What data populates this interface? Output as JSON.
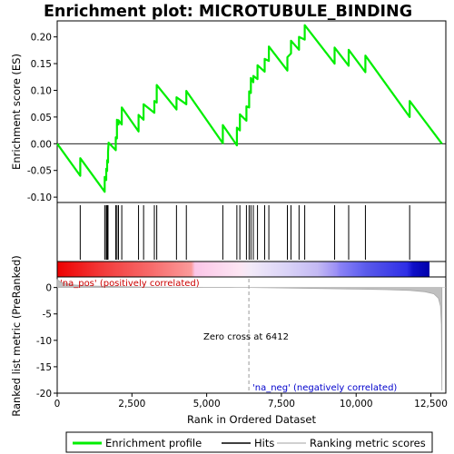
{
  "colors": {
    "enrichment": "#00ee00",
    "hits": "#000000",
    "ranking": "#c0c0c0",
    "pos_label": "#cc0000",
    "neg_label": "#0000cc",
    "zero_cross_line": "#9a9a9a"
  },
  "chart_data": {
    "type": "line",
    "title": "Enrichment plot: MICROTUBULE_BINDING",
    "xlabel": "Rank in Ordered Dataset",
    "ylabel_top": "Enrichment score (ES)",
    "ylabel_bottom": "Ranked list metric (PreRanked)",
    "xlim": [
      0,
      13000
    ],
    "ylim_top": [
      -0.11,
      0.23
    ],
    "ylim_bottom": [
      -20,
      2
    ],
    "x_ticks": [
      0,
      2500,
      5000,
      7500,
      10000,
      12500
    ],
    "x_tick_labels": [
      "0",
      "2,500",
      "5,000",
      "7,500",
      "10,000",
      "12,500"
    ],
    "y_ticks_top": [
      -0.1,
      -0.05,
      0.0,
      0.05,
      0.1,
      0.15,
      0.2
    ],
    "y_tick_labels_top": [
      "-0.10",
      "-0.05",
      "0.00",
      "0.05",
      "0.10",
      "0.15",
      "0.20"
    ],
    "y_ticks_bottom": [
      0,
      -5,
      -10,
      -15,
      -20
    ],
    "y_tick_labels_bottom": [
      "0",
      "-5",
      "-10",
      "-15",
      "-20"
    ],
    "hits": [
      770,
      1590,
      1640,
      1670,
      1700,
      1960,
      2000,
      2050,
      2160,
      2720,
      2890,
      3250,
      3330,
      3990,
      4320,
      5540,
      6010,
      6110,
      6330,
      6420,
      6480,
      6560,
      6700,
      6940,
      7080,
      7700,
      7820,
      8090,
      8280,
      9280,
      9750,
      10310,
      11790
    ],
    "es_points": [
      [
        0,
        0.0
      ],
      [
        770,
        -0.06
      ],
      [
        770,
        -0.027
      ],
      [
        1590,
        -0.09
      ],
      [
        1590,
        -0.062
      ],
      [
        1640,
        -0.068
      ],
      [
        1640,
        -0.047
      ],
      [
        1670,
        -0.051
      ],
      [
        1670,
        -0.031
      ],
      [
        1700,
        -0.035
      ],
      [
        1700,
        -0.015
      ],
      [
        1720,
        0.002
      ],
      [
        1960,
        -0.012
      ],
      [
        1960,
        0.012
      ],
      [
        2000,
        0.01
      ],
      [
        2000,
        0.045
      ],
      [
        2050,
        0.036
      ],
      [
        2050,
        0.044
      ],
      [
        2160,
        0.036
      ],
      [
        2160,
        0.068
      ],
      [
        2720,
        0.023
      ],
      [
        2720,
        0.054
      ],
      [
        2890,
        0.045
      ],
      [
        2890,
        0.074
      ],
      [
        3250,
        0.058
      ],
      [
        3250,
        0.08
      ],
      [
        3330,
        0.077
      ],
      [
        3330,
        0.11
      ],
      [
        3990,
        0.064
      ],
      [
        3990,
        0.087
      ],
      [
        4320,
        0.074
      ],
      [
        4320,
        0.099
      ],
      [
        5540,
        0.001
      ],
      [
        5540,
        0.035
      ],
      [
        6010,
        -0.003
      ],
      [
        6010,
        0.03
      ],
      [
        6110,
        0.025
      ],
      [
        6110,
        0.055
      ],
      [
        6330,
        0.043
      ],
      [
        6330,
        0.07
      ],
      [
        6420,
        0.068
      ],
      [
        6420,
        0.098
      ],
      [
        6480,
        0.095
      ],
      [
        6480,
        0.123
      ],
      [
        6560,
        0.115
      ],
      [
        6560,
        0.127
      ],
      [
        6700,
        0.121
      ],
      [
        6700,
        0.147
      ],
      [
        6940,
        0.135
      ],
      [
        6940,
        0.159
      ],
      [
        7080,
        0.155
      ],
      [
        7080,
        0.182
      ],
      [
        7700,
        0.137
      ],
      [
        7700,
        0.162
      ],
      [
        7820,
        0.169
      ],
      [
        7820,
        0.193
      ],
      [
        8090,
        0.176
      ],
      [
        8090,
        0.2
      ],
      [
        8280,
        0.195
      ],
      [
        8280,
        0.222
      ],
      [
        9280,
        0.15
      ],
      [
        9280,
        0.18
      ],
      [
        9750,
        0.146
      ],
      [
        9750,
        0.176
      ],
      [
        10310,
        0.134
      ],
      [
        10310,
        0.165
      ],
      [
        11790,
        0.05
      ],
      [
        11790,
        0.08
      ],
      [
        12870,
        0.0
      ]
    ],
    "metric_points": [
      [
        0,
        1.5
      ],
      [
        150,
        0.9
      ],
      [
        500,
        0.5
      ],
      [
        1000,
        0.3
      ],
      [
        2000,
        0.18
      ],
      [
        3000,
        0.1
      ],
      [
        4000,
        0.05
      ],
      [
        5000,
        0.02
      ],
      [
        6000,
        0.005
      ],
      [
        6412,
        0.0
      ],
      [
        7000,
        -0.05
      ],
      [
        8000,
        -0.12
      ],
      [
        9000,
        -0.2
      ],
      [
        10000,
        -0.3
      ],
      [
        11000,
        -0.4
      ],
      [
        11800,
        -0.55
      ],
      [
        12300,
        -0.8
      ],
      [
        12600,
        -1.2
      ],
      [
        12750,
        -2.0
      ],
      [
        12820,
        -3.5
      ],
      [
        12850,
        -7.0
      ],
      [
        12870,
        -19.5
      ]
    ],
    "zero_cross_rank": 6412,
    "annotations": {
      "pos": "'na_pos' (positively correlated)",
      "neg": "'na_neg' (negatively correlated)",
      "zero_cross": "Zero cross at 6412"
    },
    "legend": {
      "placement": "bottom",
      "entries": [
        "Enrichment profile",
        "Hits",
        "Ranking metric scores"
      ]
    }
  }
}
